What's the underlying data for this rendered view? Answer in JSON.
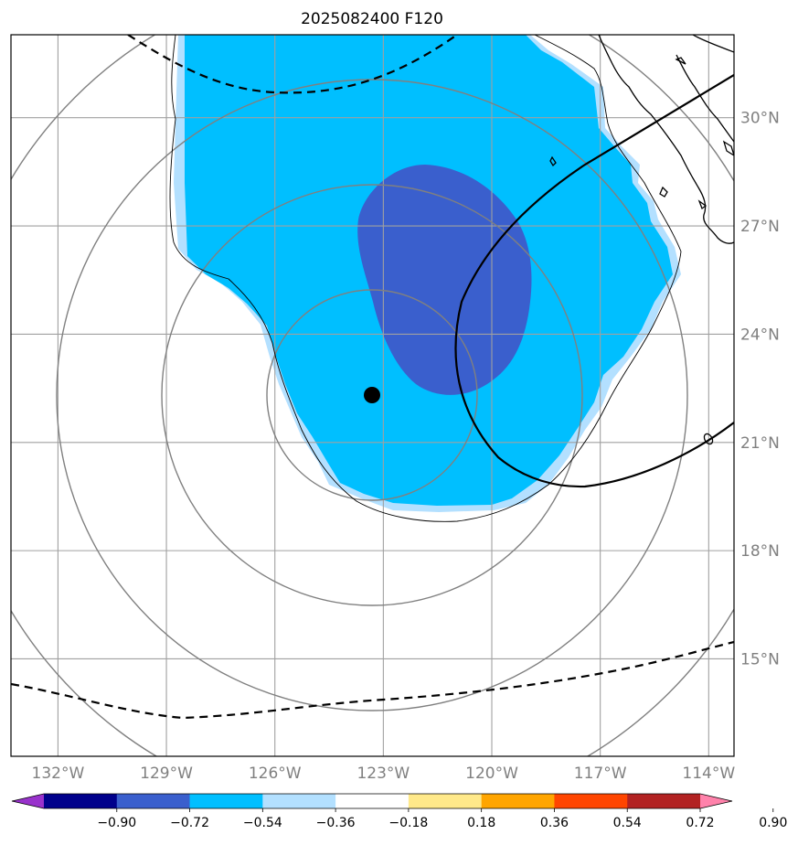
{
  "title": "2025082400 F120",
  "map": {
    "lon_range": [
      -133.3,
      -113.3
    ],
    "lat_range": [
      12.3,
      32.3
    ],
    "lon_ticks": [
      -132,
      -129,
      -126,
      -123,
      -120,
      -117,
      -114
    ],
    "lon_tick_labels": [
      "132°W",
      "129°W",
      "126°W",
      "123°W",
      "120°W",
      "117°W",
      "114°W"
    ],
    "lat_ticks": [
      15,
      18,
      21,
      24,
      27,
      30
    ],
    "lat_tick_labels": [
      "15°N",
      "18°N",
      "21°N",
      "24°N",
      "27°N",
      "30°N"
    ],
    "grid": true,
    "center_marker": {
      "lon": -123.3,
      "lat": 22.5
    },
    "range_rings_deg": [
      2.9,
      5.8,
      8.7,
      11.6
    ],
    "colors": {
      "fill_light": "#b3e0ff",
      "fill_mid": "#00bfff",
      "fill_dark": "#3a5fcd",
      "grid": "#a0a0a0",
      "ring": "#808080"
    }
  },
  "colorbar": {
    "levels": [
      -0.9,
      -0.72,
      -0.54,
      -0.36,
      -0.18,
      0.18,
      0.36,
      0.54,
      0.72,
      0.9
    ],
    "labels": [
      "−0.90",
      "−0.72",
      "−0.54",
      "−0.36",
      "−0.18",
      "0.18",
      "0.36",
      "0.54",
      "0.72",
      "0.90"
    ],
    "colors": [
      "#9932cc",
      "#00008b",
      "#3a5fcd",
      "#00bfff",
      "#b3e0ff",
      "#ffffff",
      "#ffe98a",
      "#ffa500",
      "#ff4500",
      "#b22222",
      "#ff82ab"
    ],
    "extend": "both"
  }
}
